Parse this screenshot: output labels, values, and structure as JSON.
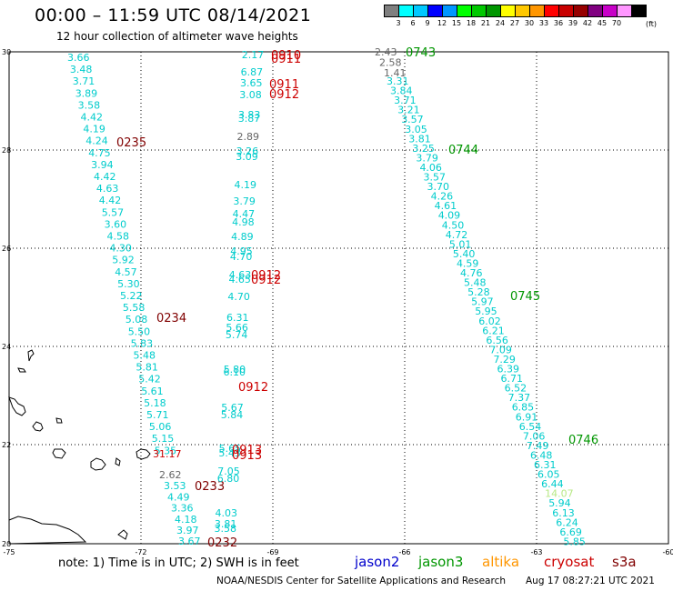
{
  "header": {
    "title": "00:00 – 11:59 UTC 08/14/2021",
    "subtitle": "12 hour collection of altimeter wave heights"
  },
  "colorbar": {
    "colors": [
      "#7f7f7f",
      "#00ffff",
      "#00c8ff",
      "#0000ff",
      "#0096ff",
      "#00ff00",
      "#00c800",
      "#009600",
      "#ffff00",
      "#ffc800",
      "#ff9600",
      "#ff0000",
      "#c80000",
      "#960000",
      "#800080",
      "#c800c8",
      "#ff96ff",
      "#000000"
    ],
    "labels": [
      "3",
      "6",
      "9",
      "12",
      "15",
      "18",
      "21",
      "24",
      "27",
      "30",
      "33",
      "36",
      "39",
      "42",
      "45",
      "70"
    ],
    "unit": "(ft)"
  },
  "axes": {
    "lat_labels": [
      "30",
      "28",
      "26",
      "24",
      "22",
      "20"
    ],
    "lon_labels": [
      "-75",
      "-72",
      "-69",
      "-66",
      "-63",
      "-60"
    ]
  },
  "colors": {
    "cryosat": "#00cccc",
    "jason3": "#009600",
    "altika": "#ff9600",
    "s3a": "#cc0000",
    "times_west": "#800000",
    "grey": "#666666",
    "jason2": "#0000cc"
  },
  "tracks": {
    "track1": {
      "values": [
        "3.66",
        "3.48",
        "3.71",
        "3.89",
        "3.58",
        "4.42",
        "4.19",
        "4.24",
        "4.75",
        "3.94",
        "4.42",
        "4.63",
        "4.42",
        "5.57",
        "3.60",
        "4.58",
        "4.30",
        "5.92",
        "4.57",
        "5.30",
        "5.22",
        "5.58",
        "5.08",
        "5.50",
        "5.83",
        "5.48",
        "5.81",
        "5.42",
        "5.61",
        "5.18",
        "5.71",
        "5.06",
        "5.15",
        "5.35"
      ],
      "time_labels": [
        "0235",
        "0234"
      ]
    },
    "track1_south": {
      "red_value": "31.17",
      "values": [
        "2.62",
        "3.53",
        "4.49",
        "3.36",
        "4.18",
        "3.97",
        "3.67"
      ],
      "time_labels": [
        "0233",
        "0232"
      ]
    },
    "track2": {
      "values": [
        "2.17",
        "6.87",
        "3.65",
        "3.08",
        "3.83",
        "3.87",
        "2.89",
        "3.26",
        "3.09",
        "4.19",
        "3.79",
        "4.47",
        "4.98",
        "4.89",
        "4.95",
        "4.70",
        "4.63",
        "4.65",
        "4.70",
        "6.31",
        "5.66",
        "5.74",
        "5.80",
        "6.10",
        "5.67",
        "5.84",
        "5.65",
        "5.43",
        "7.05",
        "6.80",
        "4.03",
        "3.81",
        "3.58"
      ],
      "time_labels": [
        "0910",
        "0911",
        "0911",
        "0912",
        "0912",
        "0912",
        "0913",
        "0913"
      ]
    },
    "track3": {
      "top_values": [
        "2.43",
        "2.58",
        "1.41"
      ],
      "values": [
        "3.31",
        "3.84",
        "3.71",
        "3.21",
        "3.57",
        "3.05",
        "3.81",
        "3.25",
        "3.79",
        "4.06",
        "3.57",
        "3.70",
        "4.26",
        "4.61",
        "4.09",
        "4.50",
        "4.72",
        "5.01",
        "5.40",
        "4.59",
        "4.76",
        "5.48",
        "5.28",
        "5.97",
        "5.95",
        "6.02",
        "6.21",
        "6.56",
        "7.09",
        "7.29",
        "6.39",
        "6.71",
        "6.52",
        "7.37",
        "6.85",
        "6.91",
        "6.54",
        "7.06",
        "7.49",
        "6.48",
        "6.31",
        "6.05",
        "6.44",
        "14.07",
        "5.94",
        "6.13",
        "6.24",
        "6.69",
        "5.85"
      ],
      "time_labels": [
        "0743",
        "0744",
        "0745",
        "0746"
      ]
    }
  },
  "legend": {
    "note": "note:  1) Time is in UTC;  2) SWH is in feet",
    "satellites": [
      "jason2",
      "jason3",
      "altika",
      "cryosat",
      "s3a"
    ]
  },
  "footer": {
    "credit": "NOAA/NESDIS Center for Satellite Applications and Research",
    "timestamp": "Aug 17 08:27:21 UTC 2021"
  }
}
